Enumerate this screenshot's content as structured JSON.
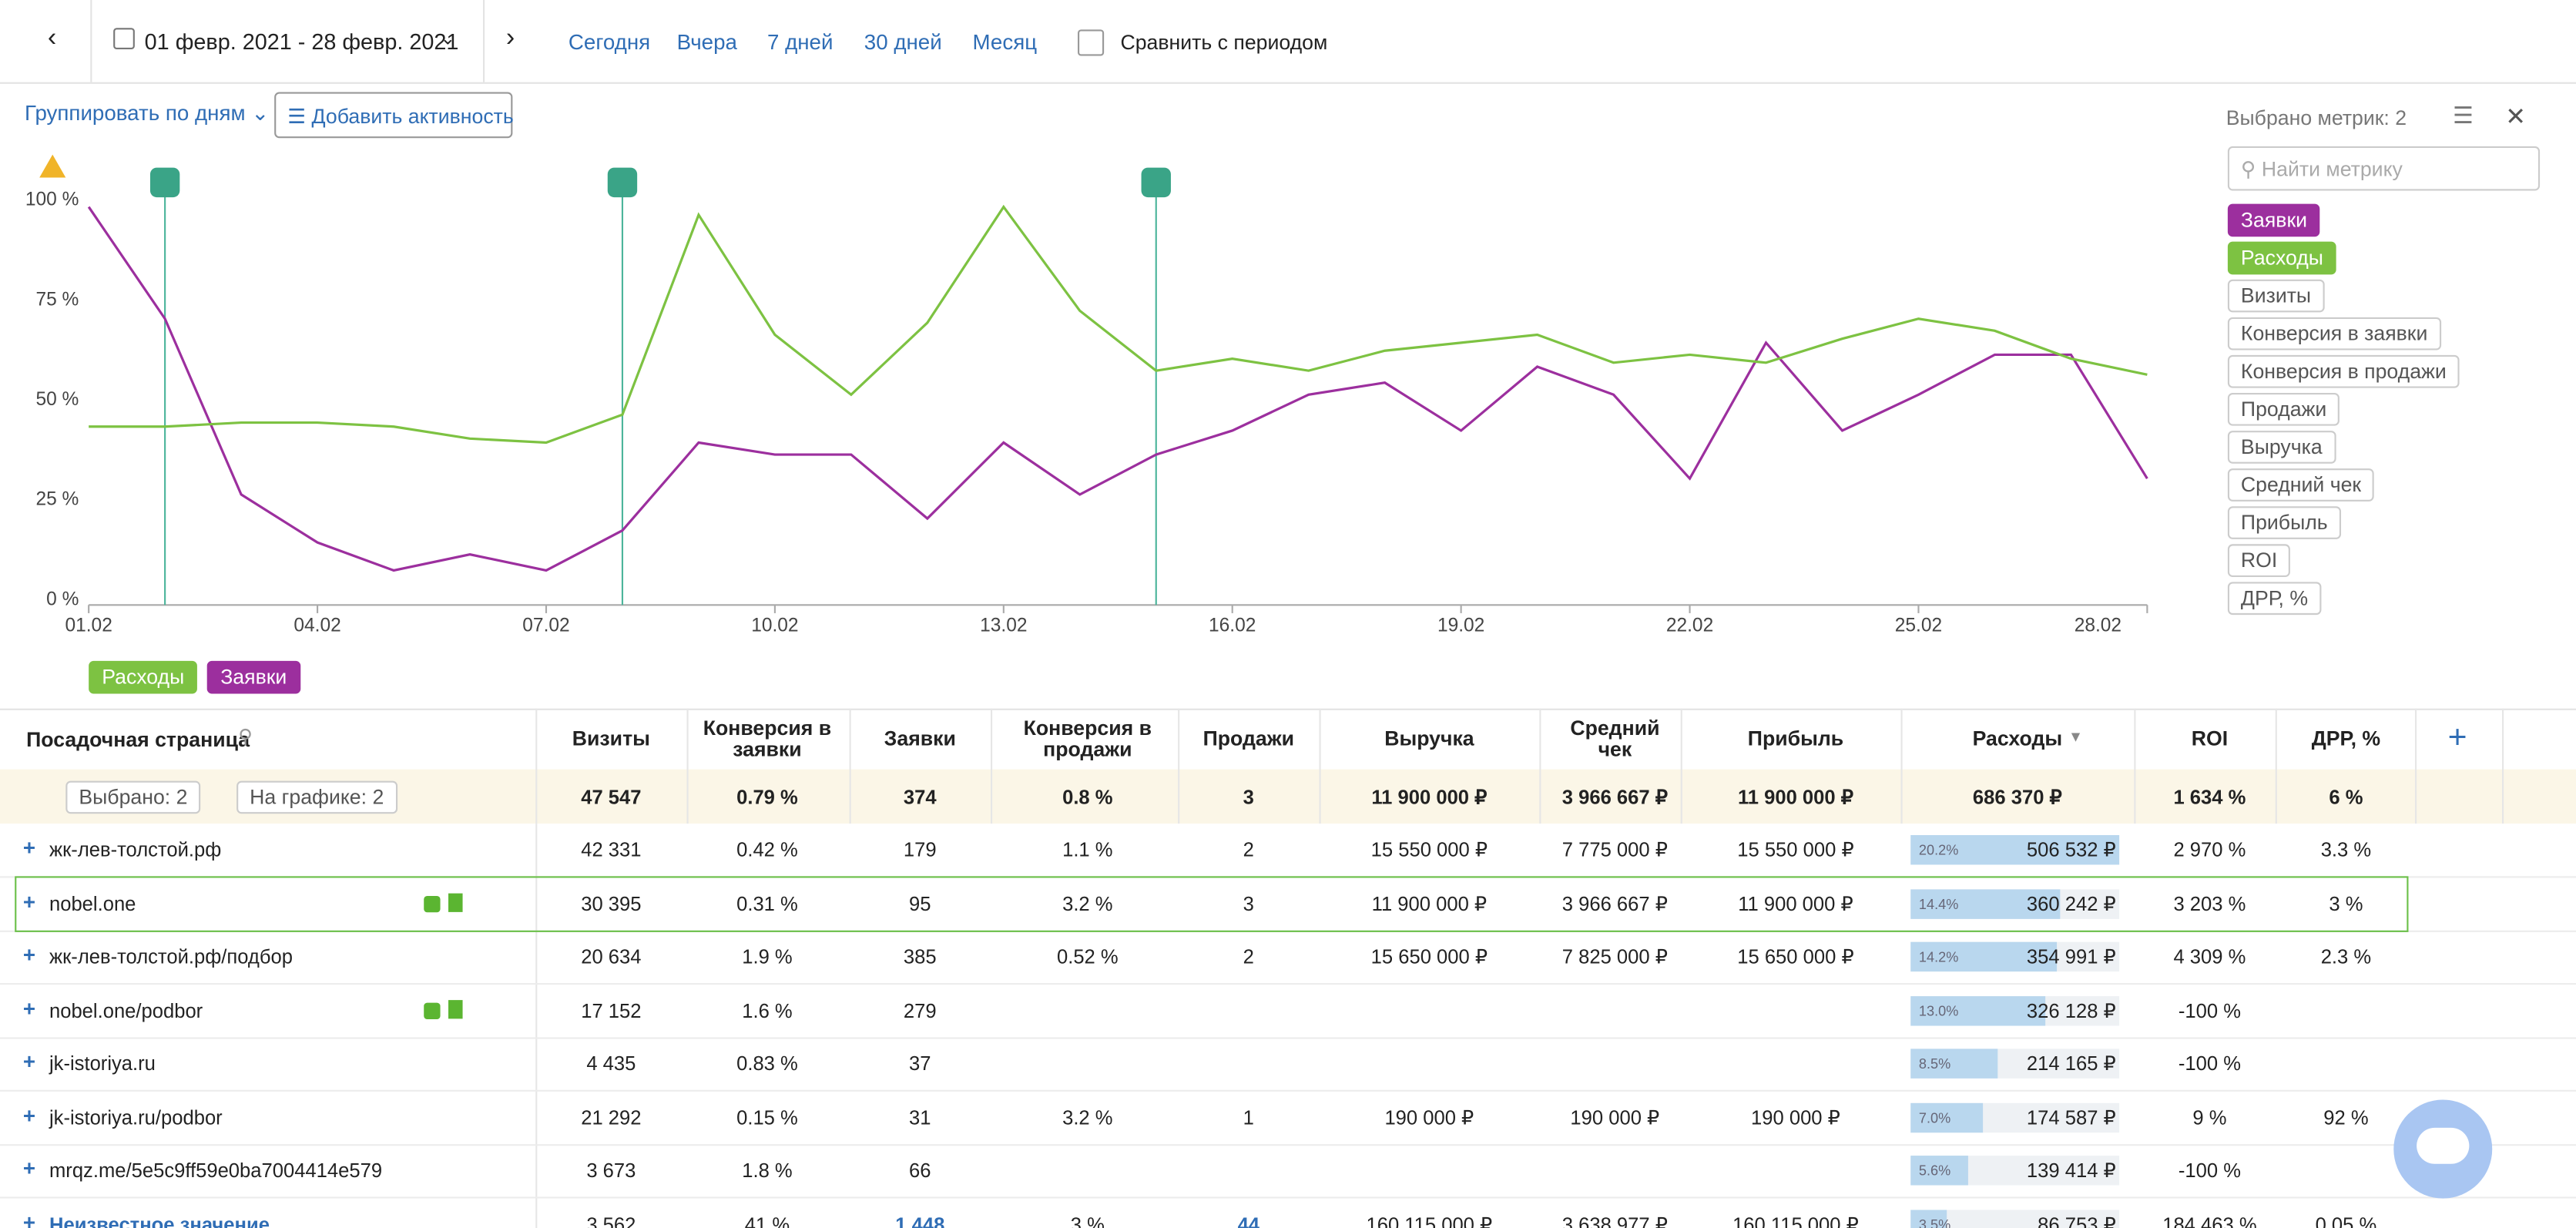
{
  "toolbar": {
    "date_range": "01 февр. 2021 - 28 февр. 2021",
    "presets": [
      "Сегодня",
      "Вчера",
      "7 дней",
      "30 дней",
      "Месяц"
    ],
    "compare": "Сравнить с периодом"
  },
  "controls": {
    "group_by": "Группировать по дням",
    "add_activity": "Добавить активность"
  },
  "chart_data": {
    "type": "line",
    "categories": [
      "01.02",
      null,
      null,
      "04.02",
      null,
      null,
      "07.02",
      null,
      null,
      "10.02",
      null,
      null,
      "13.02",
      null,
      null,
      "16.02",
      null,
      null,
      "19.02",
      null,
      null,
      "22.02",
      null,
      null,
      "25.02",
      null,
      null,
      "28.02"
    ],
    "series": [
      {
        "name": "Заявки",
        "color": "#9c2f9e",
        "values": [
          98,
          70,
          26,
          14,
          7,
          11,
          7,
          17,
          39,
          36,
          36,
          20,
          39,
          26,
          36,
          42,
          51,
          54,
          42,
          58,
          51,
          30,
          64,
          42,
          51,
          61,
          61,
          30
        ]
      },
      {
        "name": "Расходы",
        "color": "#7dc242",
        "values": [
          43,
          43,
          44,
          44,
          43,
          40,
          39,
          46,
          96,
          66,
          51,
          69,
          98,
          72,
          57,
          60,
          57,
          62,
          64,
          66,
          59,
          61,
          59,
          65,
          70,
          67,
          60,
          56
        ]
      }
    ],
    "ylim": [
      0,
      100
    ],
    "yticks": [
      {
        "value": 0,
        "label": "0 %"
      },
      {
        "value": 25,
        "label": "25 %"
      },
      {
        "value": 50,
        "label": "50 %"
      },
      {
        "value": 75,
        "label": "75 %"
      },
      {
        "value": 100,
        "label": "100 %"
      }
    ],
    "legend": "bottom-left"
  },
  "metrics_panel": {
    "title": "Выбрано метрик: 2",
    "search": "Найти метрику",
    "other": [
      "Визиты",
      "Конверсия в заявки",
      "Конверсия в продажи",
      "Продажи",
      "Выручка",
      "Средний чек",
      "Прибыль",
      "ROI",
      "ДРР, %"
    ]
  },
  "table": {
    "columns": [
      "Посадочная страница",
      "Визиты",
      "Конверсия в заявки",
      "Заявки",
      "Конверсия в продажи",
      "Продажи",
      "Выручка",
      "Средний чек",
      "Прибыль",
      "Расходы",
      "ROI",
      "ДРР, %"
    ],
    "total": {
      "selected": "Выбрано: 2",
      "on_chart": "На графике: 2",
      "cells": [
        "47 547",
        "0.79 %",
        "374",
        "0.8 %",
        "3",
        "11 900 000 ₽",
        "3 966 667 ₽",
        "11 900 000 ₽",
        "686 370 ₽",
        "1 634 %",
        "6 %"
      ]
    },
    "rows": [
      {
        "page": "жк-лев-толстой.рф",
        "cells": [
          "42 331",
          "0.42 %",
          "179",
          "1.1 %",
          "2",
          "15 550 000 ₽",
          "7 775 000 ₽",
          "15 550 000 ₽",
          "506 532 ₽",
          "2 970 %",
          "3.3 %"
        ],
        "share": {
          "value": 20.2,
          "label": "20.2%"
        }
      },
      {
        "page": "nobel.one",
        "cells": [
          "30 395",
          "0.31 %",
          "95",
          "3.2 %",
          "3",
          "11 900 000 ₽",
          "3 966 667 ₽",
          "11 900 000 ₽",
          "360 242 ₽",
          "3 203 %",
          "3 %"
        ],
        "share": {
          "value": 14.4,
          "label": "14.4%"
        },
        "on_chart": true
      },
      {
        "page": "жк-лев-толстой.рф/подбор",
        "cells": [
          "20 634",
          "1.9 %",
          "385",
          "0.52 %",
          "2",
          "15 650 000 ₽",
          "7 825 000 ₽",
          "15 650 000 ₽",
          "354 991 ₽",
          "4 309 %",
          "2.3 %"
        ],
        "share": {
          "value": 14.2,
          "label": "14.2%"
        }
      },
      {
        "page": "nobel.one/podbor",
        "cells": [
          "17 152",
          "1.6 %",
          "279",
          null,
          null,
          null,
          null,
          null,
          "326 128 ₽",
          "-100 %",
          null
        ],
        "share": {
          "value": 13.0,
          "label": "13.0%"
        },
        "on_chart": true
      },
      {
        "page": "jk-istoriya.ru",
        "cells": [
          "4 435",
          "0.83 %",
          "37",
          null,
          null,
          null,
          null,
          null,
          "214 165 ₽",
          "-100 %",
          null
        ],
        "share": {
          "value": 8.5,
          "label": "8.5%"
        }
      },
      {
        "page": "jk-istoriya.ru/podbor",
        "cells": [
          "21 292",
          "0.15 %",
          "31",
          "3.2 %",
          "1",
          "190 000 ₽",
          "190 000 ₽",
          "190 000 ₽",
          "174 587 ₽",
          "9 %",
          "92 %"
        ],
        "share": {
          "value": 7.0,
          "label": "7.0%"
        }
      },
      {
        "page": "mrqz.me/5e5c9ff59e0ba7004414e579",
        "cells": [
          "3 673",
          "1.8 %",
          "66",
          null,
          null,
          null,
          null,
          null,
          "139 414 ₽",
          "-100 %",
          null
        ],
        "share": {
          "value": 5.6,
          "label": "5.6%"
        }
      },
      {
        "page": "Неизвестное значение",
        "cells": [
          "3 562",
          "41 %",
          "1 448",
          "3 %",
          "44",
          "160 115 000 ₽",
          "3 638 977 ₽",
          "160 115 000 ₽",
          "86 753 ₽",
          "184 463 %",
          "0.05 %"
        ],
        "share": {
          "value": 3.5,
          "label": "3.5%"
        }
      }
    ]
  }
}
